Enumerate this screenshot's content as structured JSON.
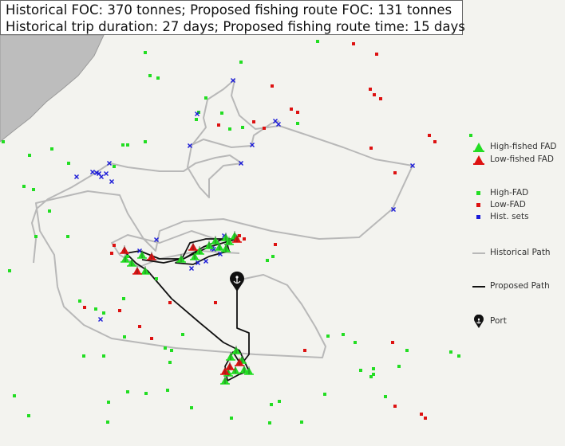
{
  "info": {
    "line1": "Historical FOC: 370 tonnes; Proposed fishing route FOC: 131 tonnes",
    "line2": "Historical trip duration: 27 days;  Proposed fishing route time: 15 days"
  },
  "legend": {
    "high_fished": "High-fished FAD",
    "low_fished": "Low-fished FAD",
    "high_fad": "High-FAD",
    "low_fad": "Low-FAD",
    "hist_sets": "Hist. sets",
    "historical_path": "Historical Path",
    "proposed_path": "Proposed Path",
    "port": "Port"
  },
  "colors": {
    "background": "#f3f3ef",
    "land": "#bdbdbd",
    "high_fad": "#22dd22",
    "low_fad": "#dd1111",
    "hist_sets": "#1a1ad8",
    "historical_path": "#b8b8b8",
    "proposed_path": "#111111",
    "port": "#111111"
  },
  "icons": {
    "high_fished": "green-triangle-marker-icon",
    "low_fished": "red-triangle-marker-icon",
    "port": "anchor-pin-icon"
  }
}
